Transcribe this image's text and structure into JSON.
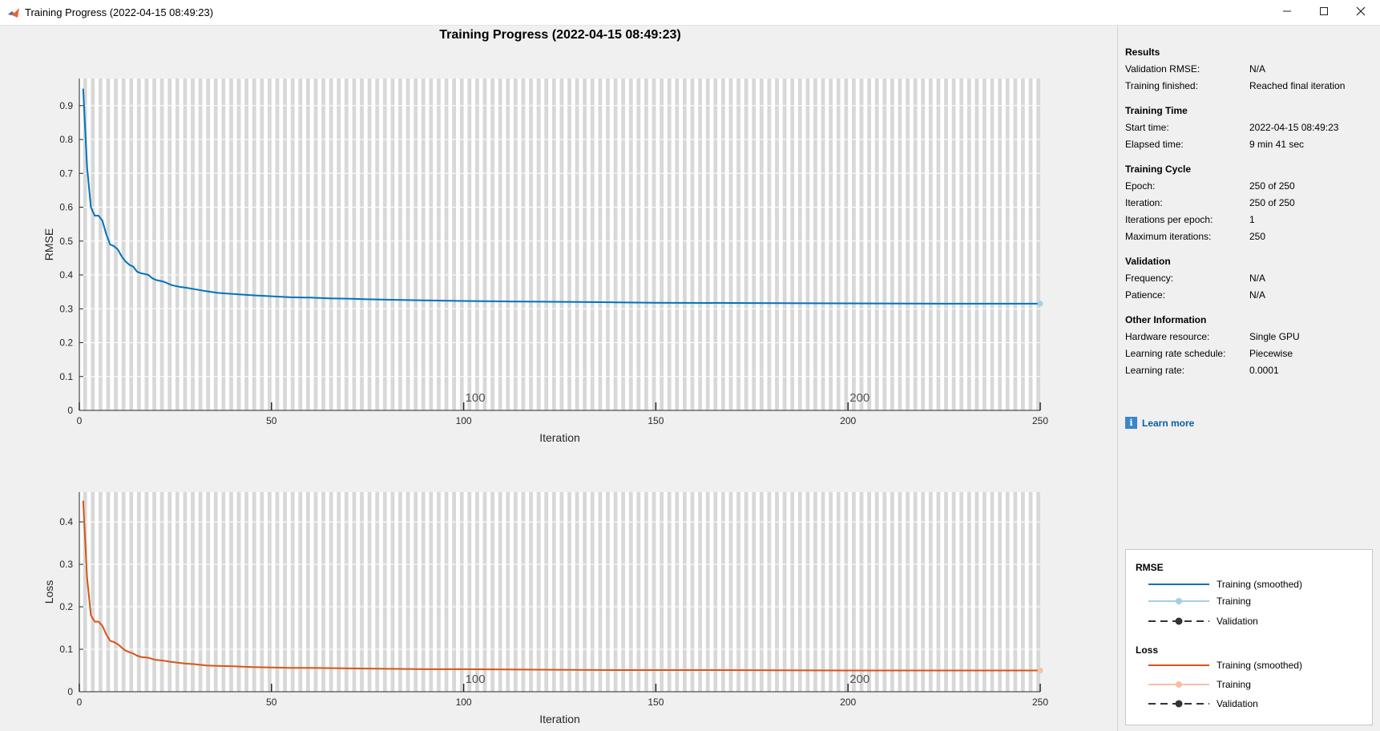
{
  "window": {
    "title": "Training Progress (2022-04-15 08:49:23)",
    "minimize_icon": "minimize-icon",
    "maximize_icon": "maximize-icon",
    "close_icon": "close-icon"
  },
  "figure": {
    "title": "Training Progress (2022-04-15 08:49:23)"
  },
  "colors": {
    "rmse_smoothed": "#0072bd",
    "rmse_training": "#a6cee3",
    "loss_smoothed": "#d95319",
    "loss_training": "#f6bfa3",
    "validation": "#333333",
    "epoch_shade": "#d8d8d8",
    "grid": "#ffffff"
  },
  "chart_data": [
    {
      "type": "line",
      "name": "rmse-plot",
      "xlabel": "Iteration",
      "ylabel": "RMSE",
      "xlim": [
        0,
        250
      ],
      "ylim": [
        0,
        0.98
      ],
      "xticks": [
        0,
        50,
        100,
        150,
        200,
        250
      ],
      "yticks": [
        0,
        0.1,
        0.2,
        0.3,
        0.4,
        0.5,
        0.6,
        0.7,
        0.8,
        0.9
      ],
      "ytick_labels": [
        "0",
        "0.1",
        "0.2",
        "0.3",
        "0.4",
        "0.5",
        "0.6",
        "0.7",
        "0.8",
        "0.9"
      ],
      "epoch_markers": [
        100,
        200
      ],
      "epoch_marker_labels": [
        "100",
        "200"
      ],
      "grid": true,
      "series": [
        {
          "name": "Training (smoothed)",
          "x": [
            1,
            2,
            3,
            4,
            5,
            6,
            7,
            8,
            9,
            10,
            11,
            12,
            13,
            14,
            15,
            16,
            17,
            18,
            19,
            20,
            22,
            24,
            26,
            28,
            30,
            33,
            36,
            40,
            45,
            50,
            55,
            60,
            65,
            70,
            75,
            80,
            90,
            100,
            110,
            120,
            130,
            140,
            150,
            175,
            200,
            225,
            250
          ],
          "y": [
            0.95,
            0.72,
            0.6,
            0.575,
            0.575,
            0.56,
            0.52,
            0.49,
            0.485,
            0.475,
            0.455,
            0.44,
            0.43,
            0.425,
            0.41,
            0.405,
            0.403,
            0.4,
            0.39,
            0.385,
            0.38,
            0.37,
            0.365,
            0.362,
            0.358,
            0.352,
            0.347,
            0.344,
            0.34,
            0.337,
            0.334,
            0.333,
            0.331,
            0.33,
            0.328,
            0.327,
            0.325,
            0.323,
            0.322,
            0.321,
            0.32,
            0.319,
            0.318,
            0.317,
            0.316,
            0.315,
            0.315
          ]
        }
      ],
      "final_point": {
        "x": 250,
        "y": 0.315
      }
    },
    {
      "type": "line",
      "name": "loss-plot",
      "xlabel": "Iteration",
      "ylabel": "Loss",
      "xlim": [
        0,
        250
      ],
      "ylim": [
        0,
        0.47
      ],
      "xticks": [
        0,
        50,
        100,
        150,
        200,
        250
      ],
      "yticks": [
        0,
        0.1,
        0.2,
        0.3,
        0.4
      ],
      "ytick_labels": [
        "0",
        "0.1",
        "0.2",
        "0.3",
        "0.4"
      ],
      "epoch_markers": [
        100,
        200
      ],
      "epoch_marker_labels": [
        "100",
        "200"
      ],
      "grid": true,
      "series": [
        {
          "name": "Training (smoothed)",
          "x": [
            1,
            2,
            3,
            4,
            5,
            6,
            7,
            8,
            9,
            10,
            11,
            12,
            13,
            14,
            15,
            16,
            17,
            18,
            19,
            20,
            22,
            24,
            26,
            28,
            30,
            33,
            36,
            40,
            45,
            50,
            55,
            60,
            70,
            80,
            90,
            100,
            120,
            140,
            160,
            200,
            250
          ],
          "y": [
            0.45,
            0.27,
            0.18,
            0.165,
            0.165,
            0.155,
            0.135,
            0.12,
            0.117,
            0.112,
            0.104,
            0.097,
            0.093,
            0.09,
            0.085,
            0.082,
            0.081,
            0.08,
            0.077,
            0.075,
            0.073,
            0.07,
            0.068,
            0.066,
            0.065,
            0.062,
            0.061,
            0.06,
            0.058,
            0.057,
            0.056,
            0.056,
            0.055,
            0.054,
            0.053,
            0.053,
            0.052,
            0.051,
            0.051,
            0.05,
            0.05
          ]
        }
      ],
      "final_point": {
        "x": 250,
        "y": 0.05
      }
    }
  ],
  "results": {
    "title": "Results",
    "rows": [
      {
        "label": "Validation RMSE:",
        "value": "N/A"
      },
      {
        "label": "Training finished:",
        "value": "Reached final iteration"
      }
    ]
  },
  "training_time": {
    "title": "Training Time",
    "rows": [
      {
        "label": "Start time:",
        "value": "2022-04-15 08:49:23"
      },
      {
        "label": "Elapsed time:",
        "value": "9 min 41 sec"
      }
    ]
  },
  "training_cycle": {
    "title": "Training Cycle",
    "rows": [
      {
        "label": "Epoch:",
        "value": "250 of 250"
      },
      {
        "label": "Iteration:",
        "value": "250 of 250"
      },
      {
        "label": "Iterations per epoch:",
        "value": "1"
      },
      {
        "label": "Maximum iterations:",
        "value": "250"
      }
    ]
  },
  "validation": {
    "title": "Validation",
    "rows": [
      {
        "label": "Frequency:",
        "value": "N/A"
      },
      {
        "label": "Patience:",
        "value": "N/A"
      }
    ]
  },
  "other_information": {
    "title": "Other Information",
    "rows": [
      {
        "label": "Hardware resource:",
        "value": "Single GPU"
      },
      {
        "label": "Learning rate schedule:",
        "value": "Piecewise"
      },
      {
        "label": "Learning rate:",
        "value": "0.0001"
      }
    ]
  },
  "learn_more": {
    "label": "Learn more",
    "icon": "info-icon"
  },
  "legend": {
    "rmse": {
      "title": "RMSE",
      "items": [
        {
          "label": "Training (smoothed)"
        },
        {
          "label": "Training"
        },
        {
          "label": "Validation"
        }
      ]
    },
    "loss": {
      "title": "Loss",
      "items": [
        {
          "label": "Training (smoothed)"
        },
        {
          "label": "Training"
        },
        {
          "label": "Validation"
        }
      ]
    }
  }
}
